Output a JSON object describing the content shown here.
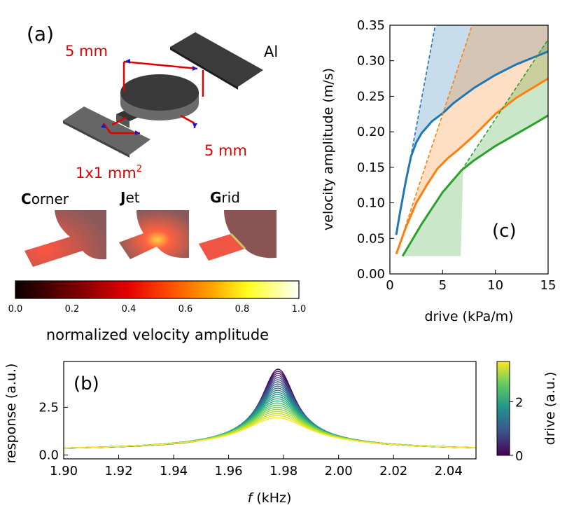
{
  "panel_a": {
    "label": "(a)",
    "dim_top": "5 mm",
    "dim_right": "5 mm",
    "dim_area_base": "1x1 mm",
    "dim_area_sup": "2",
    "material": "Al",
    "variants": [
      {
        "initial": "C",
        "rest": "orner"
      },
      {
        "initial": "J",
        "rest": "et"
      },
      {
        "initial": "G",
        "rest": "rid"
      }
    ],
    "colorbar": {
      "ticks": [
        "0.0",
        "0.2",
        "0.4",
        "0.6",
        "0.8",
        "1.0"
      ],
      "label": "normalized velocity amplitude",
      "colormap": "hot"
    }
  },
  "chart_data": [
    {
      "id": "c",
      "panel_label": "(c)",
      "type": "line",
      "xlabel": "drive (kPa/m)",
      "ylabel": "velocity amplitude (m/s)",
      "xlim": [
        0,
        15
      ],
      "ylim": [
        0,
        0.35
      ],
      "xticks": [
        "0",
        "5",
        "10",
        "15"
      ],
      "yticks": [
        "0.00",
        "0.05",
        "0.10",
        "0.15",
        "0.20",
        "0.25",
        "0.30",
        "0.35"
      ],
      "series": [
        {
          "name": "Corner",
          "color": "#1f77b4",
          "x": [
            0.6,
            1.0,
            1.5,
            2.0,
            2.5,
            3.0,
            4.0,
            5.0,
            6.0,
            8.0,
            10.0,
            12.0,
            15.0
          ],
          "y": [
            0.055,
            0.09,
            0.13,
            0.165,
            0.185,
            0.198,
            0.215,
            0.226,
            0.24,
            0.262,
            0.28,
            0.295,
            0.313
          ],
          "linear_x": [
            0.6,
            4.3
          ],
          "linear_y": [
            0.055,
            0.35
          ]
        },
        {
          "name": "Jet",
          "color": "#ff7f0e",
          "x": [
            0.6,
            1.5,
            2.5,
            3.5,
            4.5,
            5.5,
            6.5,
            8.0,
            10.0,
            12.0,
            15.0
          ],
          "y": [
            0.028,
            0.065,
            0.1,
            0.125,
            0.148,
            0.163,
            0.175,
            0.195,
            0.225,
            0.248,
            0.275
          ],
          "linear_x": [
            0.6,
            7.8
          ],
          "linear_y": [
            0.028,
            0.35
          ]
        },
        {
          "name": "Grid",
          "color": "#2ca02c",
          "x": [
            1.2,
            3.0,
            5.0,
            6.8,
            8.0,
            10.0,
            12.0,
            14.0,
            15.0
          ],
          "y": [
            0.025,
            0.07,
            0.115,
            0.146,
            0.16,
            0.18,
            0.197,
            0.214,
            0.223
          ],
          "linear_x": [
            6.8,
            15.0
          ],
          "linear_y": [
            0.146,
            0.33
          ]
        }
      ]
    },
    {
      "id": "b",
      "panel_label": "(b)",
      "type": "line",
      "xlabel_italic": "f",
      "xlabel_rest": " (kHz)",
      "ylabel": "response (a.u.)",
      "xlim": [
        1.9,
        2.05
      ],
      "ylim": [
        -0.2,
        4.9
      ],
      "xticks": [
        "1.90",
        "1.92",
        "1.94",
        "1.96",
        "1.98",
        "2.00",
        "2.02",
        "2.04"
      ],
      "yticks": [
        "0.0",
        "2.5"
      ],
      "peak_frequency_khz": 1.978,
      "peak_response_range": [
        1.95,
        4.5
      ],
      "baseline_response_at_1_90_khz": 0.3,
      "n_curves": 24,
      "colormap": "viridis",
      "colorbar": {
        "label": "drive (a.u.)",
        "ticks": [
          "0",
          "2"
        ],
        "range": [
          0,
          3.5
        ]
      }
    }
  ]
}
